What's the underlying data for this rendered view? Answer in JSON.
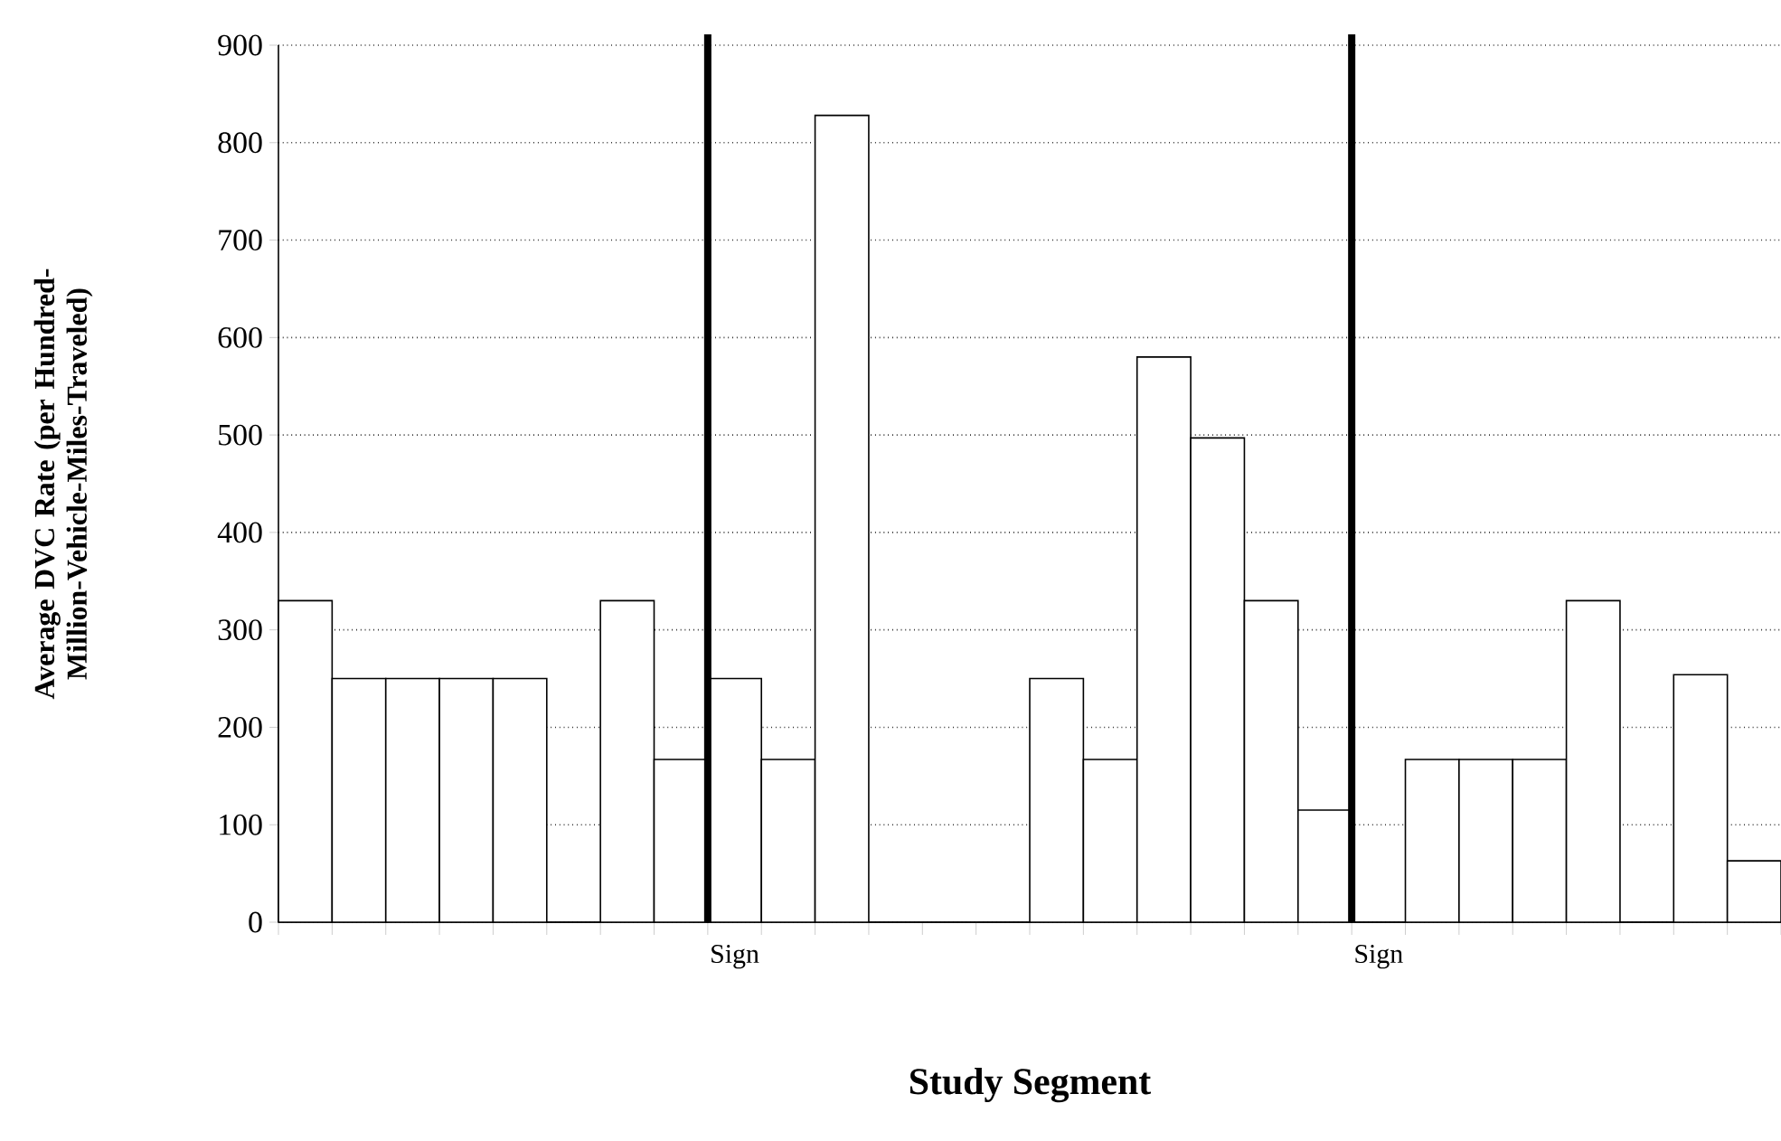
{
  "chart_data": {
    "type": "bar",
    "xlabel": "Study Segment",
    "ylabel": "Average DVC Rate (per Hundred-Million-Vehicle-Miles-Traveled)",
    "categories": [
      null,
      null,
      null,
      null,
      null,
      null,
      null,
      null,
      "Sign",
      null,
      null,
      null,
      null,
      null,
      null,
      null,
      null,
      null,
      null,
      null,
      "Sign",
      null,
      null,
      null,
      null,
      null,
      null,
      null
    ],
    "values": [
      330,
      250,
      250,
      250,
      250,
      0,
      330,
      167,
      250,
      167,
      828,
      0,
      0,
      0,
      250,
      167,
      580,
      497,
      330,
      115,
      0,
      167,
      167,
      167,
      330,
      0,
      254,
      63
    ],
    "color": "#ffffff",
    "ylim": [
      0,
      900
    ],
    "yticks": [
      0,
      100,
      200,
      300,
      400,
      500,
      600,
      700,
      800,
      900
    ],
    "grid": "y"
  }
}
